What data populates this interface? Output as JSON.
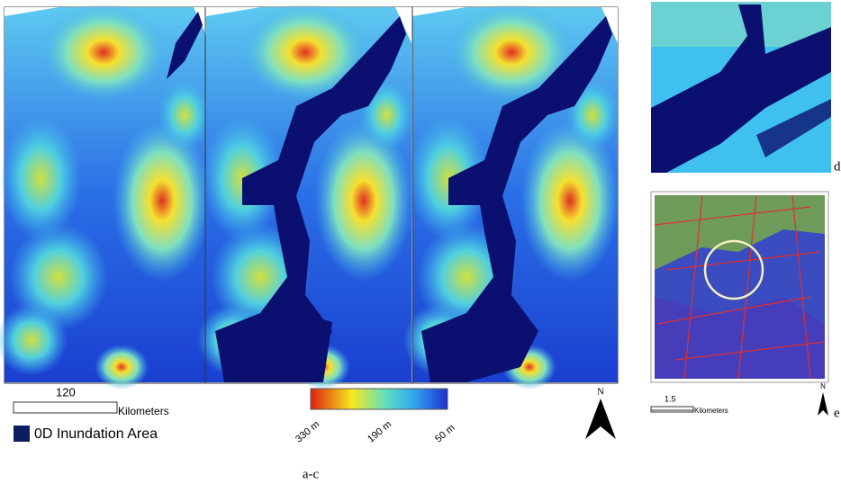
{
  "panels": {
    "label_ac": "a-c",
    "label_d": "d",
    "label_e": "e"
  },
  "scale_bar_main": {
    "distance": "120",
    "unit": "Kilometers"
  },
  "legend": {
    "label": "0D Inundation Area"
  },
  "colorbar": {
    "labels": [
      "330 m",
      "190 m",
      "50 m"
    ]
  },
  "north_main": "N",
  "scale_bar_inset": {
    "distance": "1.5",
    "unit": "Kilometers"
  },
  "north_inset": "N"
}
